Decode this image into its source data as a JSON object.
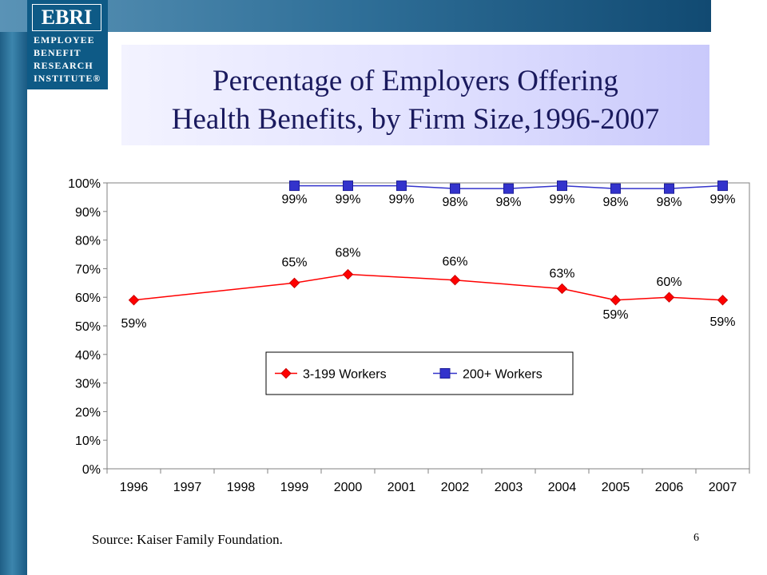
{
  "logo": {
    "mark": "EBRI",
    "lines": [
      "EMPLOYEE",
      "BENEFIT",
      "RESEARCH",
      "INSTITUTE®"
    ]
  },
  "slide": {
    "title_line1": "Percentage of Employers Offering",
    "title_line2": "Health Benefits, by Firm Size,1996-2007",
    "source": "Source: Kaiser Family Foundation.",
    "page_number": "6"
  },
  "colors": {
    "small_firm": "#ff0000",
    "large_firm": "#3333cc",
    "title": "#1a1a5e"
  },
  "chart_data": {
    "type": "line",
    "title": "",
    "xlabel": "",
    "ylabel": "",
    "categories": [
      "1996",
      "1997",
      "1998",
      "1999",
      "2000",
      "2001",
      "2002",
      "2003",
      "2004",
      "2005",
      "2006",
      "2007"
    ],
    "ylim": [
      0,
      100
    ],
    "yticks": [
      "0%",
      "10%",
      "20%",
      "30%",
      "40%",
      "50%",
      "60%",
      "70%",
      "80%",
      "90%",
      "100%"
    ],
    "grid": false,
    "legend_position": "center",
    "series": [
      {
        "name": "3-199 Workers",
        "marker": "diamond",
        "color": "#ff0000",
        "points": [
          {
            "x": "1996",
            "y": 59,
            "label": "59%"
          },
          {
            "x": "1999",
            "y": 65,
            "label": "65%"
          },
          {
            "x": "2000",
            "y": 68,
            "label": "68%"
          },
          {
            "x": "2002",
            "y": 66,
            "label": "66%"
          },
          {
            "x": "2004",
            "y": 63,
            "label": "63%"
          },
          {
            "x": "2005",
            "y": 59,
            "label": "59%"
          },
          {
            "x": "2006",
            "y": 60,
            "label": "60%"
          },
          {
            "x": "2007",
            "y": 59,
            "label": "59%"
          }
        ]
      },
      {
        "name": "200+ Workers",
        "marker": "square",
        "color": "#3333cc",
        "points": [
          {
            "x": "1999",
            "y": 99,
            "label": "99%"
          },
          {
            "x": "2000",
            "y": 99,
            "label": "99%"
          },
          {
            "x": "2001",
            "y": 99,
            "label": "99%"
          },
          {
            "x": "2002",
            "y": 98,
            "label": "98%"
          },
          {
            "x": "2003",
            "y": 98,
            "label": "98%"
          },
          {
            "x": "2004",
            "y": 99,
            "label": "99%"
          },
          {
            "x": "2005",
            "y": 98,
            "label": "98%"
          },
          {
            "x": "2006",
            "y": 98,
            "label": "98%"
          },
          {
            "x": "2007",
            "y": 99,
            "label": "99%"
          }
        ]
      }
    ]
  }
}
